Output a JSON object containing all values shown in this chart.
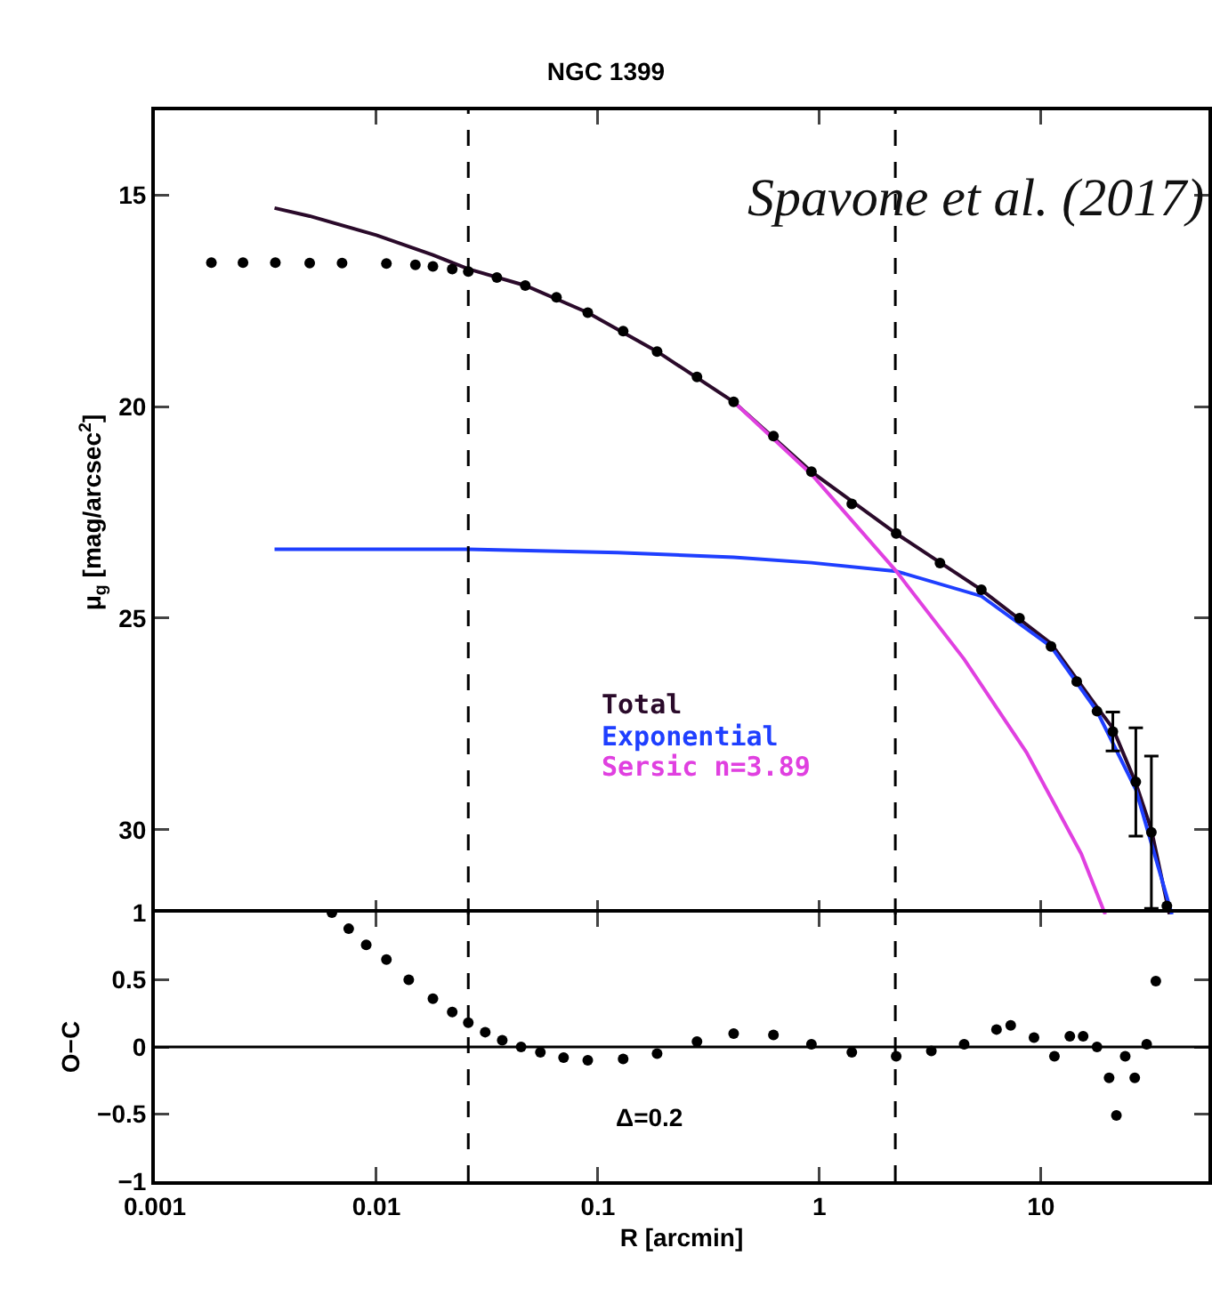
{
  "chart_data": [
    {
      "type": "scatter",
      "title": "NGC 1399",
      "ylabel": "μ$_{g}$ [mag/arcsec$^{2}$]",
      "annotations": [
        "Spavone et al. (2017)"
      ],
      "log": "x",
      "xlim": [
        0.001,
        57
      ],
      "xticks": [
        0.001,
        0.01,
        0.1,
        1,
        10
      ],
      "ylim": [
        32,
        13
      ],
      "yticks": [
        15,
        20,
        25,
        30
      ],
      "tick_labels": "y",
      "grid": false,
      "legend": "bottom",
      "ref_lines": [
        {
          "axis": "x",
          "value": 0.026,
          "color": "#000000",
          "line_style": "dashed"
        },
        {
          "axis": "x",
          "value": 2.2,
          "color": "#000000",
          "line_style": "dashed"
        }
      ],
      "series": [
        {
          "type": "scatter",
          "marker": "circle",
          "color": "#000000",
          "x": [
            0.0018,
            0.0025,
            0.0035,
            0.005,
            0.007,
            0.0111,
            0.015,
            0.018,
            0.022,
            0.026,
            0.035,
            0.047,
            0.065,
            0.09,
            0.13,
            0.185,
            0.28,
            0.41,
            0.62,
            0.92,
            1.4,
            2.22,
            3.5,
            5.38,
            8,
            11.1,
            14.5,
            17.9,
            21.1,
            26.8,
            31.5,
            37
          ],
          "values": [
            16.6,
            16.6,
            16.6,
            16.61,
            16.61,
            16.62,
            16.65,
            16.69,
            16.75,
            16.81,
            16.95,
            17.14,
            17.42,
            17.78,
            18.22,
            18.7,
            19.3,
            19.89,
            20.7,
            21.54,
            22.3,
            23.0,
            23.7,
            24.33,
            25.0,
            25.67,
            26.5,
            27.2,
            27.68,
            28.87,
            30.06,
            31.8
          ],
          "errors": [
            null,
            null,
            null,
            null,
            null,
            null,
            null,
            null,
            null,
            null,
            null,
            null,
            null,
            null,
            null,
            null,
            null,
            null,
            null,
            null,
            null,
            null,
            null,
            null,
            null,
            null,
            null,
            null,
            0.46,
            1.28,
            1.8,
            null
          ]
        },
        {
          "name": "Total",
          "type": "line",
          "color": "#2a0a2a",
          "x": [
            0.00347,
            0.005,
            0.01,
            0.018,
            0.026,
            0.047,
            0.09,
            0.185,
            0.41,
            0.92,
            2.22,
            5.38,
            11.1,
            17.9,
            21.1,
            26.8,
            31.5,
            38
          ],
          "values": [
            15.31,
            15.5,
            15.95,
            16.42,
            16.75,
            17.14,
            17.78,
            18.7,
            19.89,
            21.54,
            23.0,
            24.33,
            25.6,
            27.1,
            27.6,
            28.9,
            30.0,
            32
          ]
        },
        {
          "name": "Exponential",
          "type": "line",
          "color": "#1f3fff",
          "x": [
            0.00347,
            0.026,
            0.123,
            0.41,
            0.92,
            2.22,
            5.38,
            11.1,
            17.9,
            26.8,
            39
          ],
          "values": [
            23.37,
            23.37,
            23.45,
            23.56,
            23.69,
            23.89,
            24.48,
            25.67,
            27.2,
            29.05,
            32
          ]
        },
        {
          "name": "Sersic n=3.89",
          "type": "line",
          "color": "#e040e0",
          "x": [
            0.41,
            0.92,
            2.22,
            4.5,
            8.6,
            15.2,
            19.5
          ],
          "values": [
            19.89,
            21.6,
            23.89,
            25.97,
            28.17,
            30.57,
            32
          ]
        }
      ]
    },
    {
      "type": "scatter",
      "ylabel": "O−C",
      "xlabel": "R [arcmin]",
      "annotations": [
        "Δ=0.2"
      ],
      "log": "x",
      "xlim": [
        0.001,
        57
      ],
      "xticks": [
        0.001,
        0.01,
        0.1,
        1,
        10
      ],
      "ylim": [
        -1,
        1
      ],
      "yticks": [
        {
          "value": -1,
          "label": "−1"
        },
        {
          "value": -0.5,
          "label": "−0.5"
        },
        0,
        0.5,
        1
      ],
      "grid": false,
      "marker": "circle",
      "color": "#000000",
      "ref_lines": [
        {
          "axis": "x",
          "value": 0.026,
          "color": "#000000",
          "line_style": "dashed"
        },
        {
          "axis": "x",
          "value": 2.2,
          "color": "#000000",
          "line_style": "dashed"
        },
        {
          "axis": "y",
          "value": 0,
          "color": "#000000",
          "line_style": "solid"
        }
      ],
      "x": [
        0.0063,
        0.0075,
        0.009,
        0.0111,
        0.014,
        0.018,
        0.022,
        0.026,
        0.031,
        0.037,
        0.045,
        0.055,
        0.07,
        0.09,
        0.13,
        0.185,
        0.28,
        0.41,
        0.62,
        0.92,
        1.4,
        2.22,
        3.2,
        4.5,
        6.3,
        7.3,
        9.3,
        11.5,
        13.5,
        15.5,
        17.9,
        20.3,
        21.9,
        24,
        26.5,
        30,
        33
      ],
      "values": [
        1.0,
        0.88,
        0.76,
        0.65,
        0.5,
        0.36,
        0.26,
        0.18,
        0.11,
        0.05,
        0.0,
        -0.04,
        -0.08,
        -0.1,
        -0.09,
        -0.05,
        0.04,
        0.1,
        0.09,
        0.02,
        -0.04,
        -0.07,
        -0.03,
        0.02,
        0.13,
        0.16,
        0.07,
        -0.07,
        0.08,
        0.08,
        0.0,
        -0.23,
        -0.51,
        -0.07,
        -0.23,
        0.02,
        0.49
      ]
    }
  ]
}
